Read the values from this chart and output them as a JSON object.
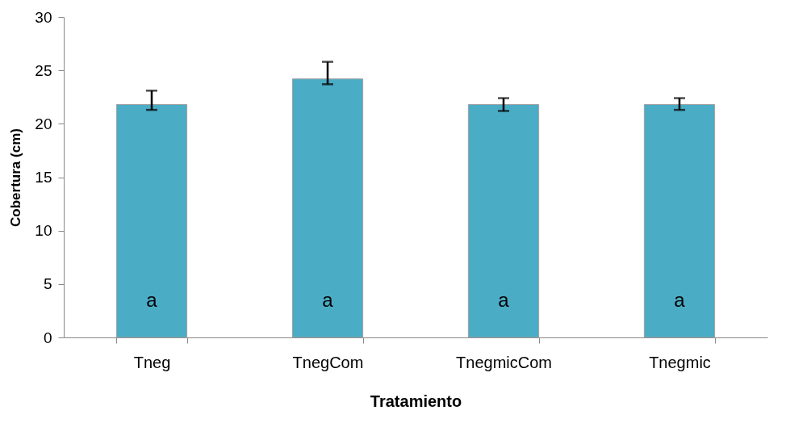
{
  "chart_data": {
    "type": "bar",
    "xlabel": "Tratamiento",
    "ylabel": "Cobertura (cm)",
    "categories": [
      "Tneg",
      "TnegCom",
      "TnegmicCom",
      "Tnegmic"
    ],
    "values": [
      21.8,
      24.2,
      21.8,
      21.8
    ],
    "errors": [
      [
        21.3,
        23.1
      ],
      [
        23.7,
        25.8
      ],
      [
        21.2,
        22.4
      ],
      [
        21.3,
        22.4
      ]
    ],
    "color": "#4bacc6",
    "ylim": [
      0,
      30
    ],
    "yticks": [
      0,
      5,
      10,
      15,
      20,
      25,
      30
    ],
    "grid": false,
    "annotations": [
      "a",
      "a",
      "a",
      "a"
    ]
  }
}
